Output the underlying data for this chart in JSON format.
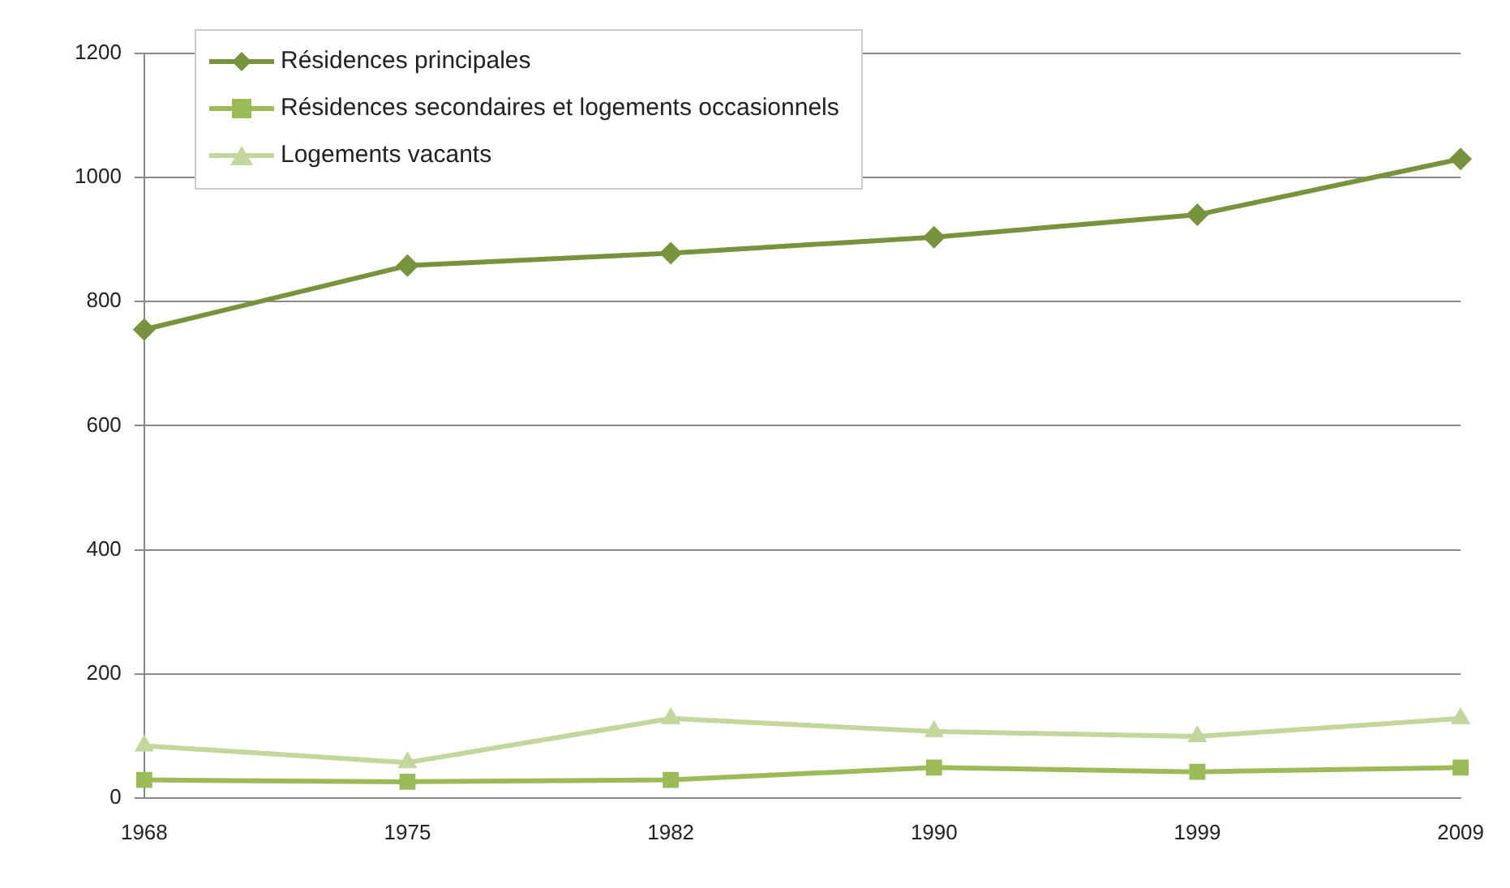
{
  "chart_data": {
    "type": "line",
    "categories": [
      "1968",
      "1975",
      "1982",
      "1990",
      "1999",
      "2009"
    ],
    "ylim": [
      0,
      1200
    ],
    "yticks": [
      0,
      200,
      400,
      600,
      800,
      1000,
      1200
    ],
    "grid": "y",
    "legend": "top left",
    "series": [
      {
        "name": "Résidences principales",
        "color": "#77933c",
        "marker": "diamond",
        "values": [
          755,
          858,
          878,
          904,
          940,
          1030
        ]
      },
      {
        "name": "Résidences secondaires et logements occasionnels",
        "color": "#9bbb59",
        "marker": "square",
        "values": [
          29,
          26,
          29,
          49,
          42,
          49
        ]
      },
      {
        "name": "Logements vacants",
        "color": "#c3d69b",
        "marker": "triangle",
        "values": [
          84,
          57,
          128,
          107,
          99,
          128
        ]
      }
    ]
  }
}
